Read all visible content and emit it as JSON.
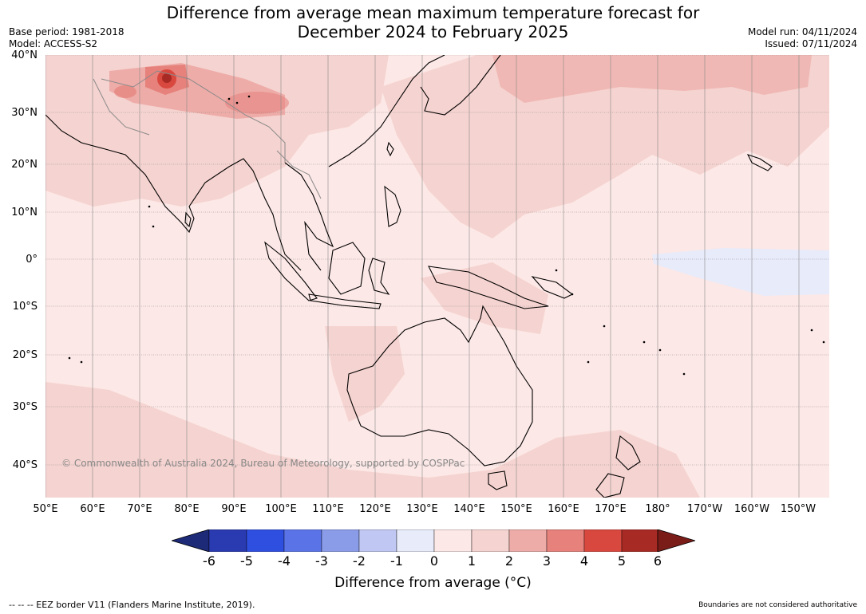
{
  "title_line1": "Difference from average mean maximum temperature forecast for",
  "title_line2": "December 2024 to February 2025",
  "meta_left": [
    "Base period: 1981-2018",
    "Model: ACCESS-S2"
  ],
  "meta_right": [
    "Model run: 04/11/2024",
    "Issued: 07/11/2024"
  ],
  "lat_labels": [
    "40°N",
    "30°N",
    "20°N",
    "10°N",
    "0°",
    "10°S",
    "20°S",
    "30°S",
    "40°S"
  ],
  "lon_labels": [
    "50°E",
    "60°E",
    "70°E",
    "80°E",
    "90°E",
    "100°E",
    "110°E",
    "120°E",
    "130°E",
    "140°E",
    "150°E",
    "160°E",
    "170°E",
    "180°",
    "170°W",
    "160°W",
    "150°W"
  ],
  "copyright": "© Commonwealth of Australia 2024, Bureau of Meteorology, supported by COSPPac",
  "colorbar": {
    "ticks": [
      "-6",
      "-5",
      "-4",
      "-3",
      "-2",
      "-1",
      "0",
      "1",
      "2",
      "3",
      "4",
      "5",
      "6"
    ],
    "colors": [
      "#1c2a78",
      "#2a3ab0",
      "#2f4fe0",
      "#5a73e6",
      "#8a9ce8",
      "#bfc7f2",
      "#e8ebfa",
      "#fce8e6",
      "#f5d3d0",
      "#eeaca8",
      "#e6817b",
      "#d9483e",
      "#a82a24",
      "#7a1c18"
    ],
    "label": "Difference from average ($^\\circ$C)",
    "label_display": "Difference from average (°C)"
  },
  "footer_left": "--  --  -- EEZ border V11 (Flanders Marine Institute, 2019).",
  "footer_right": "Boundaries are not considered authoritative"
}
